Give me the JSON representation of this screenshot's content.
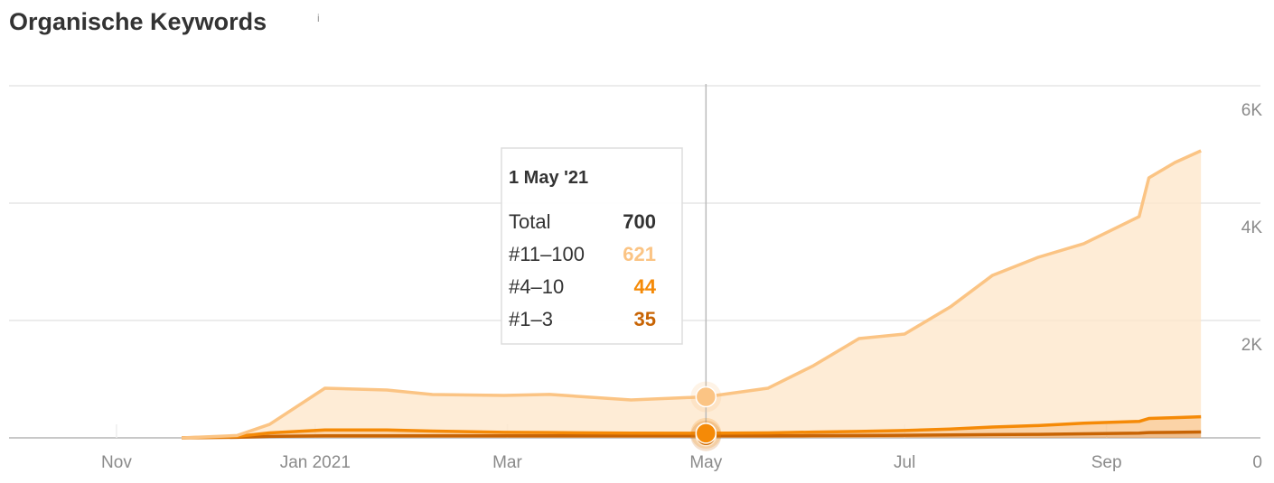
{
  "chart_data": {
    "type": "area",
    "stacked": true,
    "title": "Organische Keywords",
    "title_icon": "i",
    "x": [
      "2020-11-21",
      "2020-12-08",
      "2020-12-18",
      "2021-01-04",
      "2021-01-23",
      "2021-02-06",
      "2021-02-28",
      "2021-03-14",
      "2021-04-08",
      "2021-05-01",
      "2021-05-20",
      "2021-06-03",
      "2021-06-17",
      "2021-07-01",
      "2021-07-15",
      "2021-07-28",
      "2021-08-11",
      "2021-08-25",
      "2021-09-11",
      "2021-09-14",
      "2021-09-22",
      "2021-09-30"
    ],
    "series": [
      {
        "name": "#1–3",
        "color": "#c86404",
        "fill": "#e8a868",
        "values": [
          0,
          10,
          25,
          35,
          35,
          35,
          35,
          35,
          35,
          35,
          35,
          38,
          40,
          45,
          50,
          55,
          60,
          70,
          80,
          90,
          95,
          100
        ]
      },
      {
        "name": "#4–10",
        "color": "#f58a07",
        "fill": "#f9c48a",
        "values": [
          0,
          15,
          60,
          100,
          100,
          80,
          60,
          55,
          45,
          44,
          50,
          60,
          70,
          80,
          100,
          130,
          150,
          180,
          200,
          240,
          250,
          260
        ]
      },
      {
        "name": "#11–100",
        "color": "#fbc484",
        "fill": "#fde5c8",
        "values": [
          0,
          15,
          145,
          711,
          680,
          623,
          628,
          650,
          566,
          621,
          761,
          1132,
          1582,
          1645,
          2080,
          2585,
          2867,
          3058,
          3490,
          4100,
          4347,
          4532
        ]
      }
    ],
    "xlim": [
      "2020-09-29",
      "2021-10-03"
    ],
    "xticks": [
      {
        "value": "2020-11-01",
        "label": "Nov"
      },
      {
        "value": "2021-01-01",
        "label": "Jan 2021"
      },
      {
        "value": "2021-03-01",
        "label": "Mar"
      },
      {
        "value": "2021-05-01",
        "label": "May"
      },
      {
        "value": "2021-07-01",
        "label": "Jul"
      },
      {
        "value": "2021-09-01",
        "label": "Sep"
      }
    ],
    "ylim": [
      0,
      6000
    ],
    "yticks": [
      0,
      {
        "value": 2000,
        "label": "2K"
      },
      {
        "value": 4000,
        "label": "4K"
      },
      {
        "value": 6000,
        "label": "6K"
      }
    ],
    "grid": true,
    "tooltip": {
      "x": "2021-05-01",
      "date_label": "1 May '21",
      "total_label": "Total",
      "total": 700
    }
  }
}
